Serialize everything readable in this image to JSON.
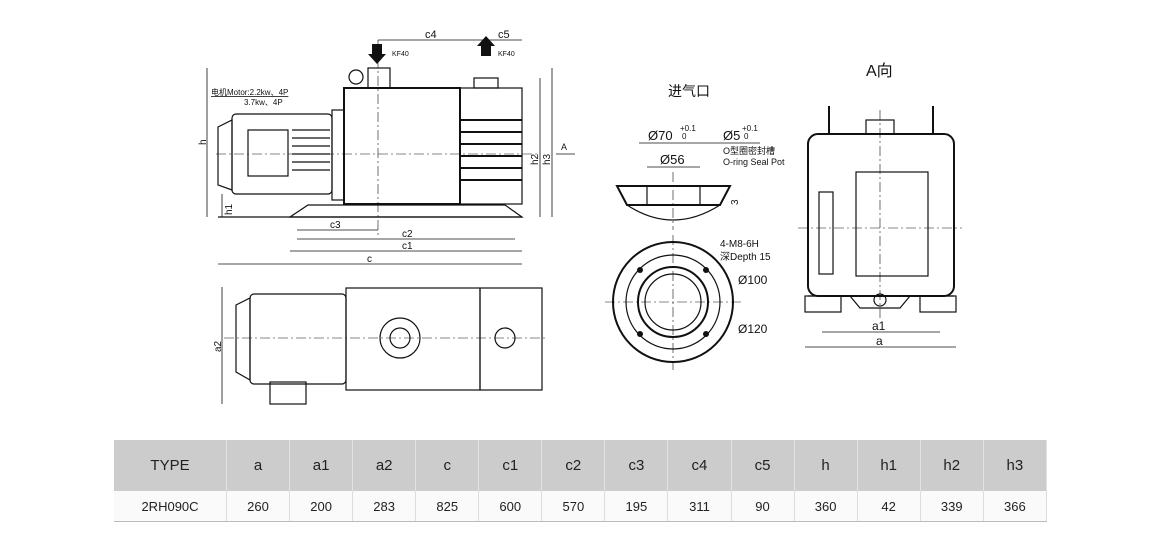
{
  "side_view": {
    "motor_label_1": "电机Motor:2.2kw、4P",
    "motor_label_2": "3.7kw、4P",
    "port_in": "KF40",
    "port_out": "KF40",
    "dims": {
      "c4": "c4",
      "c5": "c5",
      "h": "h",
      "h1": "h1",
      "h2": "h2",
      "h3": "h3",
      "c3": "c3",
      "c2": "c2",
      "c1": "c1",
      "c": "c",
      "a2": "a2",
      "view_arrow": "A"
    }
  },
  "inlet_detail": {
    "title": "进气口",
    "d70": "Ø70",
    "d70_tol_upper": "+0.1",
    "d70_tol_lower": "0",
    "d5": "Ø5",
    "d5_tol_upper": "+0.1",
    "d5_tol_lower": "0",
    "d56": "Ø56",
    "seal_cn": "O型圈密封槽",
    "seal_en": "O-ring Seal Pot",
    "depth3": "3",
    "thread": "4-M8-6H",
    "depth": "深Depth 15",
    "d100": "Ø100",
    "d120": "Ø120"
  },
  "end_view": {
    "title": "A向",
    "a1": "a1",
    "a": "a"
  },
  "table": {
    "headers": [
      "TYPE",
      "a",
      "a1",
      "a2",
      "c",
      "c1",
      "c2",
      "c3",
      "c4",
      "c5",
      "h",
      "h1",
      "h2",
      "h3"
    ],
    "rows": [
      [
        "2RH090C",
        "260",
        "200",
        "283",
        "825",
        "600",
        "570",
        "195",
        "311",
        "90",
        "360",
        "42",
        "339",
        "366"
      ]
    ]
  }
}
